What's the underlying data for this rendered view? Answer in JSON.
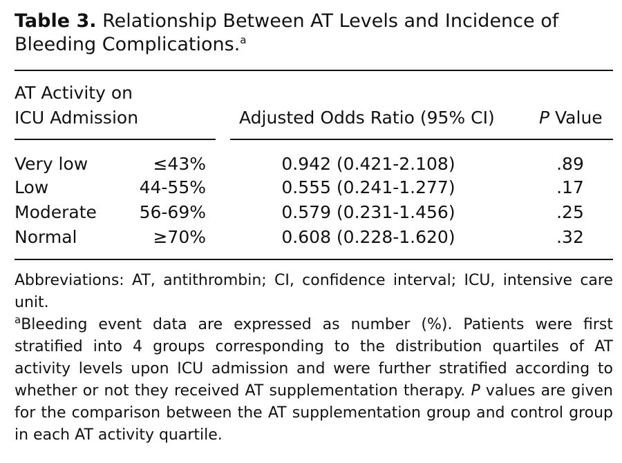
{
  "table": {
    "number": "Table 3.",
    "title": "Relationship Between AT Levels and Incidence of Bleeding Complications.",
    "title_footnote_mark": "a",
    "header": {
      "col1_line1": "AT Activity on",
      "col1_line2": "ICU Admission",
      "col2": "Adjusted Odds Ratio (95% CI)",
      "col3_italic": "P",
      "col3_rest": " Value"
    },
    "rows": [
      {
        "group": "Very low",
        "range": "≤43%",
        "or_ci": "0.942 (0.421-2.108)",
        "p": ".89"
      },
      {
        "group": "Low",
        "range": "44-55%",
        "or_ci": "0.555 (0.241-1.277)",
        "p": ".17"
      },
      {
        "group": "Moderate",
        "range": "56-69%",
        "or_ci": "0.579 (0.231-1.456)",
        "p": ".25"
      },
      {
        "group": "Normal",
        "range": "≥70%",
        "or_ci": "0.608 (0.228-1.620)",
        "p": ".32"
      }
    ],
    "footnotes": {
      "abbreviations": "Abbreviations: AT, antithrombin; CI, confidence interval; ICU, intensive care unit.",
      "note_mark": "a",
      "note_part1": "Bleeding event data are expressed as number (%). Patients were first stratified into 4 groups corresponding to the distribution quartiles of AT activity levels upon ICU admission and were further stratified according to whether or not they received AT supplementation therapy. ",
      "note_italic": "P",
      "note_part2": " values are given for the comparison between the AT supplementation group and control group in each AT activity quartile."
    }
  }
}
